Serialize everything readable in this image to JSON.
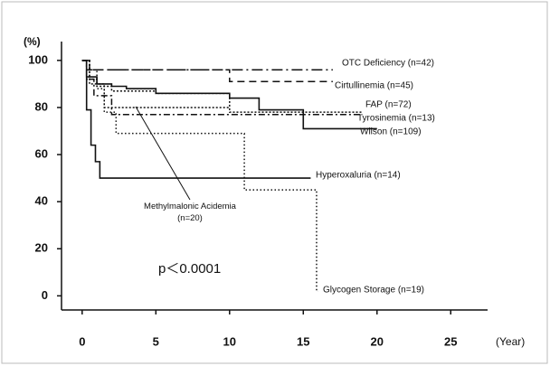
{
  "chart_data": {
    "type": "step",
    "y_label": "(%)",
    "x_label": "(Year)",
    "annotation": "p＜0.0001",
    "xlim": [
      -1.4,
      27.5
    ],
    "ylim": [
      -6,
      108
    ],
    "xticks": [
      0,
      5,
      10,
      15,
      20,
      25
    ],
    "yticks": [
      0,
      20,
      40,
      60,
      80,
      100
    ],
    "grid": false,
    "series": [
      {
        "name": "OTC Deficiency (n=42)",
        "color": "#111111",
        "style": "long-dash-dot",
        "x": [
          0,
          0.3,
          17
        ],
        "values": [
          100,
          96,
          96
        ]
      },
      {
        "name": "Cirtullinemia (n=45)",
        "color": "#111111",
        "style": "dashed",
        "x": [
          0,
          0.5,
          10,
          17
        ],
        "values": [
          100,
          96,
          91,
          91
        ]
      },
      {
        "name": "FAP (n=72)",
        "color": "#111111",
        "style": "fine-dotted",
        "x": [
          0,
          0.5,
          1,
          2,
          5,
          10,
          19
        ],
        "values": [
          100,
          92,
          89,
          87,
          86,
          78,
          78
        ]
      },
      {
        "name": "Tyrosinemia (n=13)",
        "color": "#111111",
        "style": "dash-dot",
        "x": [
          0,
          0.3,
          0.8,
          2,
          19
        ],
        "values": [
          100,
          92,
          85,
          77,
          77
        ]
      },
      {
        "name": "Wilson (n=109)",
        "color": "#111111",
        "style": "solid",
        "x": [
          0,
          0.3,
          1,
          2,
          3,
          5,
          10,
          12,
          15,
          20
        ],
        "values": [
          100,
          93,
          90,
          89,
          88,
          86,
          84,
          79,
          71,
          71
        ]
      },
      {
        "name": "Hyperoxaluria (n=14)",
        "color": "#111111",
        "style": "solid",
        "x": [
          0,
          0.3,
          0.6,
          0.9,
          1.2,
          15.5
        ],
        "values": [
          100,
          79,
          64,
          57,
          50,
          50
        ]
      },
      {
        "name": "Methylmalonic Acidemia (n=20)",
        "color": "#111111",
        "style": "fine-dotted",
        "x": [
          0,
          0.5,
          1.5,
          10
        ],
        "values": [
          100,
          90,
          80,
          80
        ]
      },
      {
        "name": "Glycogen Storage (n=19)",
        "color": "#111111",
        "style": "dotted",
        "x": [
          0,
          0.5,
          1,
          1.5,
          2.3,
          11,
          15.9,
          16
        ],
        "values": [
          100,
          96,
          88,
          78,
          69,
          45,
          2,
          2
        ]
      }
    ]
  }
}
